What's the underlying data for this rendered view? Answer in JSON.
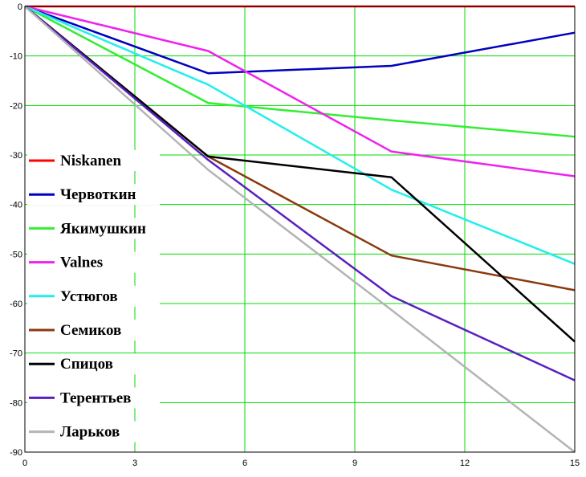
{
  "chart_data": {
    "type": "line",
    "title": "",
    "xlabel": "",
    "ylabel": "",
    "xlim": [
      0,
      15
    ],
    "ylim": [
      -90,
      0
    ],
    "x_ticks": [
      0,
      3,
      6,
      9,
      12,
      15
    ],
    "y_ticks": [
      0,
      -10,
      -20,
      -30,
      -40,
      -50,
      -60,
      -70,
      -80,
      -90
    ],
    "x_tick_labels": [
      "0",
      "3",
      "6",
      "9",
      "12",
      "15"
    ],
    "y_tick_labels": [
      "0",
      "-10",
      "-20",
      "-30",
      "-40",
      "-50",
      "-60",
      "-70",
      "-80",
      "-90"
    ],
    "grid": true,
    "grid_color": "#00dd00",
    "legend_position": "left",
    "x": [
      0,
      5,
      10,
      15
    ],
    "series": [
      {
        "name": "Niskanen",
        "color": "#ff0000",
        "values": [
          0,
          0,
          0,
          0
        ]
      },
      {
        "name": "Червоткин",
        "color": "#0000c0",
        "values": [
          0,
          -13.5,
          -12,
          -5.3
        ]
      },
      {
        "name": "Якимушкин",
        "color": "#33ee33",
        "values": [
          0,
          -19.5,
          -23,
          -26.3
        ]
      },
      {
        "name": "Valnes",
        "color": "#ee22ee",
        "values": [
          0,
          -9,
          -29.3,
          -34.3
        ]
      },
      {
        "name": "Устюгов",
        "color": "#22eeee",
        "values": [
          0,
          -15.8,
          -37,
          -52
        ]
      },
      {
        "name": "Семиков",
        "color": "#8b3a0f",
        "values": [
          0,
          -30.3,
          -50.3,
          -57.3
        ]
      },
      {
        "name": "Спицов",
        "color": "#000000",
        "values": [
          0,
          -30.3,
          -34.5,
          -67.7
        ]
      },
      {
        "name": "Терентьев",
        "color": "#5a1fc0",
        "values": [
          0,
          -31,
          -58.5,
          -75.5
        ]
      },
      {
        "name": "Ларьков",
        "color": "#b4b4b4",
        "values": [
          0,
          -33,
          -61.3,
          -90
        ]
      }
    ]
  }
}
